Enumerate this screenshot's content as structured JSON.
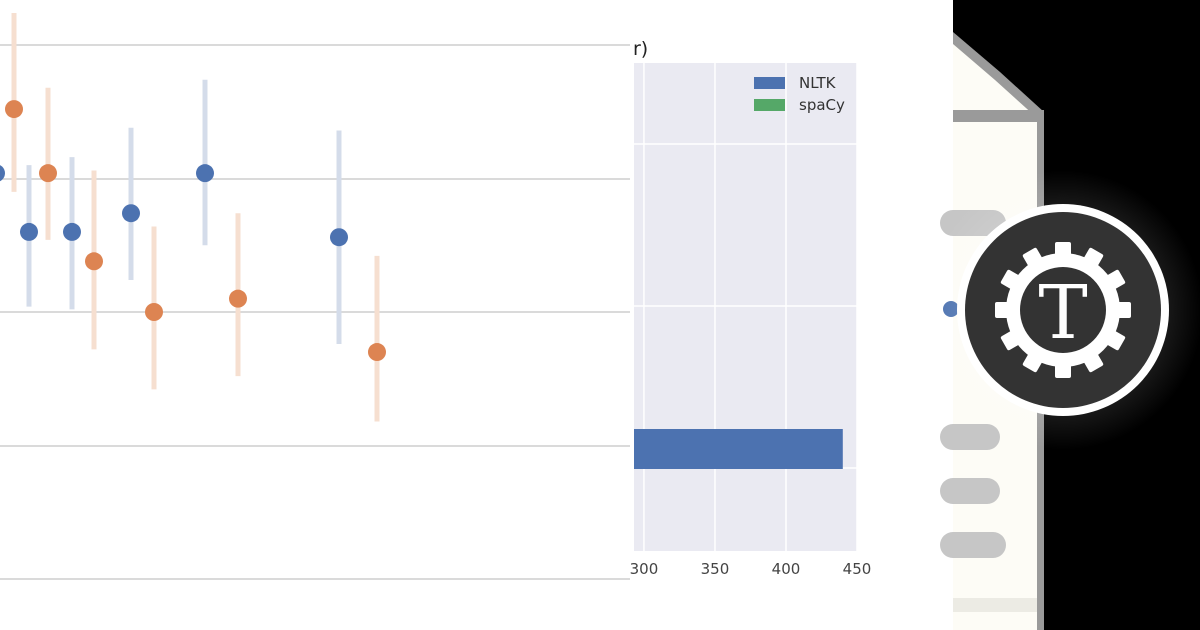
{
  "colors": {
    "nltk": "#4c72b0",
    "spacy": "#dd8452",
    "spacy_legend": "#55a868",
    "plot_bg": "#eaeaf2",
    "right_bg": "#000000",
    "doc_paper": "#fdfcf6",
    "doc_edge": "#9a9a9a",
    "badge_dark": "#333333",
    "badge_ring": "#ffffff"
  },
  "chart_data": [
    {
      "type": "scatter",
      "title": "",
      "xlabel": "",
      "ylabel": "",
      "grid": "horizontal",
      "error_bars": true,
      "series": [
        {
          "color": "#4c72b0",
          "points": [
            {
              "x": 1,
              "y": 0.52,
              "low": 0.3,
              "high": 0.77
            },
            {
              "x": 2,
              "y": 0.3,
              "low": 0.02,
              "high": 0.55
            },
            {
              "x": 3,
              "y": 0.3,
              "low": 0.01,
              "high": 0.58
            },
            {
              "x": 4,
              "y": 0.37,
              "low": 0.12,
              "high": 0.69
            },
            {
              "x": 5,
              "y": 0.52,
              "low": 0.25,
              "high": 0.87
            },
            {
              "x": 6,
              "y": 0.28,
              "low": -0.12,
              "high": 0.68
            }
          ]
        },
        {
          "color": "#dd8452",
          "points": [
            {
              "x": 1,
              "y": 0.76,
              "low": 0.45,
              "high": 1.12
            },
            {
              "x": 2,
              "y": 0.52,
              "low": 0.27,
              "high": 0.84
            },
            {
              "x": 3,
              "y": 0.19,
              "low": -0.14,
              "high": 0.53
            },
            {
              "x": 4,
              "y": 0.0,
              "low": -0.29,
              "high": 0.32
            },
            {
              "x": 5,
              "y": 0.05,
              "low": -0.24,
              "high": 0.37
            },
            {
              "x": 6,
              "y": -0.15,
              "low": -0.41,
              "high": 0.21
            }
          ]
        }
      ]
    },
    {
      "type": "bar",
      "orientation": "horizontal",
      "title": "r)",
      "xlabel": "",
      "ylabel": "",
      "xlim": [
        293,
        450
      ],
      "grid": true,
      "legend_position": "top-right",
      "x_ticks": [
        "300",
        "350",
        "400",
        "450"
      ],
      "legend": [
        {
          "name": "NLTK",
          "color": "#4c72b0"
        },
        {
          "name": "spaCy",
          "color": "#55a868"
        }
      ],
      "series": [
        {
          "name": "NLTK",
          "values": [
            440
          ]
        }
      ]
    }
  ],
  "logo": {
    "glyph": "T"
  }
}
